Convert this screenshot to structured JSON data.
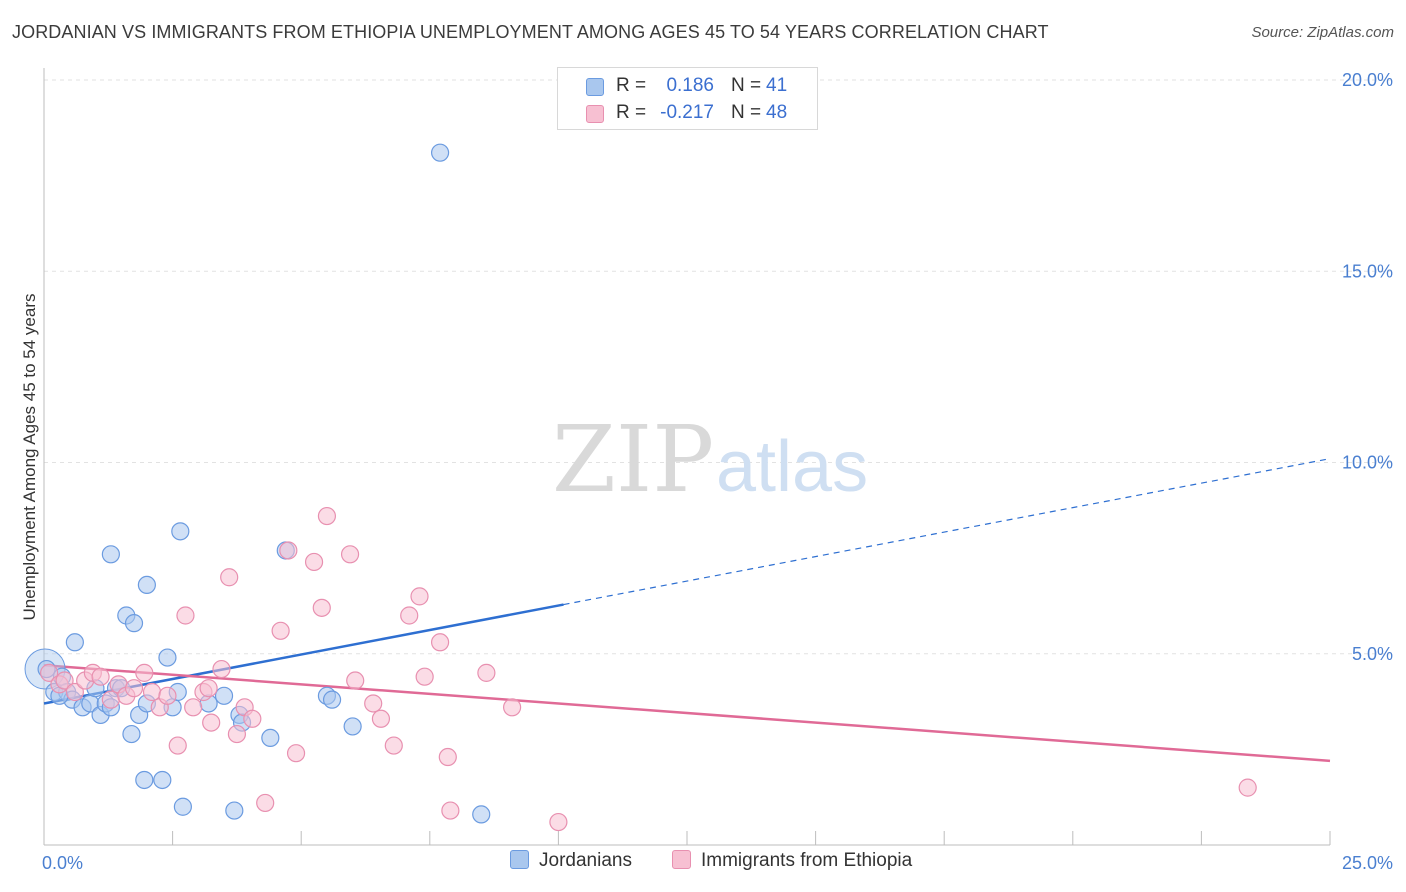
{
  "header": {
    "title": "JORDANIAN VS IMMIGRANTS FROM ETHIOPIA UNEMPLOYMENT AMONG AGES 45 TO 54 YEARS CORRELATION CHART",
    "source": "Source: ZipAtlas.com"
  },
  "watermark": {
    "zip": "ZIP",
    "atlas": "atlas"
  },
  "legend": {
    "rows": [
      {
        "r_label": "R =",
        "r_value": "0.186",
        "n_label": "N =",
        "n_value": "41"
      },
      {
        "r_label": "R =",
        "r_value": "-0.217",
        "n_label": "N =",
        "n_value": "48"
      }
    ]
  },
  "bottom_legend": {
    "items": [
      {
        "label": "Jordanians"
      },
      {
        "label": "Immigrants from Ethiopia"
      }
    ]
  },
  "colors": {
    "blue_fill": "#a9c7ee",
    "blue_stroke": "#6b9be0",
    "blue_line": "#2e6fd1",
    "pink_fill": "#f7c0d2",
    "pink_stroke": "#e890b0",
    "pink_line": "#e06a96",
    "grid": "#e2e2e2",
    "axis": "#bdbdbd",
    "tick_text": "#4a7fd0"
  },
  "chart_data": {
    "type": "scatter",
    "title": "JORDANIAN VS IMMIGRANTS FROM ETHIOPIA UNEMPLOYMENT AMONG AGES 45 TO 54 YEARS CORRELATION CHART",
    "xlabel": "",
    "ylabel": "Unemployment Among Ages 45 to 54 years",
    "xlim": [
      0,
      25
    ],
    "ylim": [
      0,
      20
    ],
    "x_tick_labels": [
      {
        "value": 0,
        "label": "0.0%"
      },
      {
        "value": 25,
        "label": "25.0%"
      }
    ],
    "y_tick_labels": [
      {
        "value": 5,
        "label": "5.0%"
      },
      {
        "value": 10,
        "label": "10.0%"
      },
      {
        "value": 15,
        "label": "15.0%"
      },
      {
        "value": 20,
        "label": "20.0%"
      }
    ],
    "x_minor_ticks": [
      2.5,
      5,
      7.5,
      10,
      12.5,
      15,
      17.5,
      20,
      22.5,
      25
    ],
    "legend_position": "top-center",
    "series": [
      {
        "name": "Jordanians",
        "r": 0.186,
        "n": 41,
        "trend": {
          "x0": 0,
          "y0": 3.7,
          "x_solid_end": 10.1,
          "x_dash_end": 25,
          "y_at_25": 10.1
        },
        "points": [
          [
            0.05,
            4.6
          ],
          [
            0.2,
            4.0
          ],
          [
            0.35,
            4.4
          ],
          [
            0.45,
            4.0
          ],
          [
            0.55,
            3.8
          ],
          [
            0.6,
            5.3
          ],
          [
            0.75,
            3.6
          ],
          [
            0.9,
            3.7
          ],
          [
            1.0,
            4.1
          ],
          [
            1.1,
            3.4
          ],
          [
            1.2,
            3.7
          ],
          [
            1.3,
            7.6
          ],
          [
            1.4,
            4.1
          ],
          [
            1.5,
            4.1
          ],
          [
            1.6,
            6.0
          ],
          [
            1.7,
            2.9
          ],
          [
            1.75,
            5.8
          ],
          [
            1.85,
            3.4
          ],
          [
            1.95,
            1.7
          ],
          [
            2.0,
            6.8
          ],
          [
            2.0,
            3.7
          ],
          [
            2.3,
            1.7
          ],
          [
            2.4,
            4.9
          ],
          [
            2.5,
            3.6
          ],
          [
            2.6,
            4.0
          ],
          [
            2.65,
            8.2
          ],
          [
            2.7,
            1.0
          ],
          [
            3.2,
            3.7
          ],
          [
            3.5,
            3.9
          ],
          [
            3.7,
            0.9
          ],
          [
            3.8,
            3.4
          ],
          [
            3.85,
            3.2
          ],
          [
            4.4,
            2.8
          ],
          [
            4.7,
            7.7
          ],
          [
            5.5,
            3.9
          ],
          [
            5.6,
            3.8
          ],
          [
            6.0,
            3.1
          ],
          [
            7.7,
            18.1
          ],
          [
            8.5,
            0.8
          ],
          [
            0.3,
            3.9
          ],
          [
            1.3,
            3.6
          ]
        ]
      },
      {
        "name": "Immigrants from Ethiopia",
        "r": -0.217,
        "n": 48,
        "trend": {
          "x0": 0,
          "y0": 4.7,
          "x1": 25,
          "y1": 2.2
        },
        "points": [
          [
            0.1,
            4.5
          ],
          [
            0.3,
            4.2
          ],
          [
            0.4,
            4.3
          ],
          [
            0.6,
            4.0
          ],
          [
            0.8,
            4.3
          ],
          [
            0.95,
            4.5
          ],
          [
            1.1,
            4.4
          ],
          [
            1.3,
            3.8
          ],
          [
            1.45,
            4.2
          ],
          [
            1.6,
            3.9
          ],
          [
            1.75,
            4.1
          ],
          [
            1.95,
            4.5
          ],
          [
            2.1,
            4.0
          ],
          [
            2.25,
            3.6
          ],
          [
            2.4,
            3.9
          ],
          [
            2.6,
            2.6
          ],
          [
            2.75,
            6.0
          ],
          [
            2.9,
            3.6
          ],
          [
            3.1,
            4.0
          ],
          [
            3.2,
            4.1
          ],
          [
            3.25,
            3.2
          ],
          [
            3.45,
            4.6
          ],
          [
            3.6,
            7.0
          ],
          [
            3.75,
            2.9
          ],
          [
            3.9,
            3.6
          ],
          [
            4.05,
            3.3
          ],
          [
            4.3,
            1.1
          ],
          [
            4.6,
            5.6
          ],
          [
            4.75,
            7.7
          ],
          [
            4.9,
            2.4
          ],
          [
            5.25,
            7.4
          ],
          [
            5.4,
            6.2
          ],
          [
            5.5,
            8.6
          ],
          [
            5.95,
            7.6
          ],
          [
            6.05,
            4.3
          ],
          [
            6.4,
            3.7
          ],
          [
            6.55,
            3.3
          ],
          [
            6.8,
            2.6
          ],
          [
            7.1,
            6.0
          ],
          [
            7.3,
            6.5
          ],
          [
            7.4,
            4.4
          ],
          [
            7.7,
            5.3
          ],
          [
            7.85,
            2.3
          ],
          [
            7.9,
            0.9
          ],
          [
            8.6,
            4.5
          ],
          [
            9.1,
            3.6
          ],
          [
            10.0,
            0.6
          ],
          [
            23.4,
            1.5
          ]
        ]
      }
    ]
  }
}
